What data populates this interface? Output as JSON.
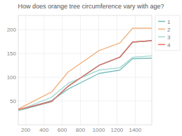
{
  "chart_data": {
    "type": "line",
    "title": "How does orange tree circumference vary with age?",
    "x": [
      118,
      484,
      664,
      1004,
      1231,
      1372,
      1582
    ],
    "series": [
      {
        "name": "1",
        "color": "#7bbfbe",
        "values": [
          30,
          51,
          75,
          108,
          115,
          139,
          140
        ]
      },
      {
        "name": "2",
        "color": "#f0b482",
        "values": [
          33,
          69,
          111,
          156,
          172,
          203,
          203
        ]
      },
      {
        "name": "3",
        "color": "#a8dbd5",
        "values": [
          30,
          58,
          87,
          115,
          120,
          142,
          145
        ]
      },
      {
        "name": "4",
        "color": "#e8736a",
        "values": [
          32,
          49,
          81,
          125,
          142,
          174,
          177
        ]
      },
      {
        "name": null,
        "color": "#2e8b80",
        "values": [
          30,
          49,
          81,
          125,
          142,
          174,
          177
        ]
      }
    ],
    "xlim": [
      118,
      1582
    ],
    "xticks": [
      200,
      400,
      600,
      800,
      1000,
      1200,
      1400
    ],
    "ylim": [
      0,
      230
    ],
    "yticks": [
      50,
      100,
      150,
      200
    ],
    "grid": true,
    "legend": "right"
  }
}
